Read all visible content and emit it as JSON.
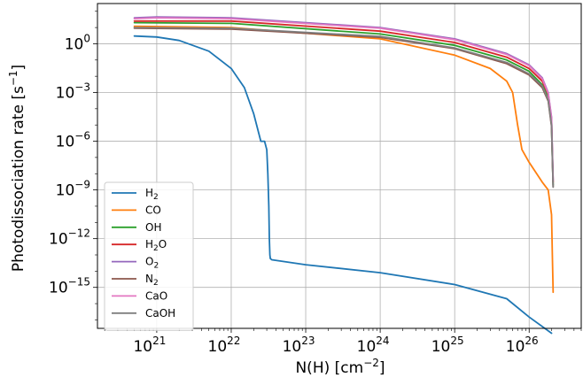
{
  "chart_data": {
    "type": "line",
    "xlabel": "N(H) [cm^-2]",
    "ylabel": "Photodissociation rate [s^-1]",
    "x_scale": "log",
    "y_scale": "log",
    "xlim": [
      1.6e+20,
      5e+26
    ],
    "ylim": [
      3e-18,
      300.0
    ],
    "x_ticks": [
      1e+21,
      1e+22,
      1e+23,
      1e+24,
      1e+25,
      1e+26
    ],
    "y_ticks": [
      1,
      0.001,
      1e-06,
      1e-09,
      1e-12,
      1e-15
    ],
    "x_tick_labels": [
      {
        "base": "10",
        "exp": "21"
      },
      {
        "base": "10",
        "exp": "22"
      },
      {
        "base": "10",
        "exp": "23"
      },
      {
        "base": "10",
        "exp": "24"
      },
      {
        "base": "10",
        "exp": "25"
      },
      {
        "base": "10",
        "exp": "26"
      }
    ],
    "y_tick_labels": [
      {
        "base": "10",
        "exp": "0"
      },
      {
        "base": "10",
        "exp": "−3"
      },
      {
        "base": "10",
        "exp": "−6"
      },
      {
        "base": "10",
        "exp": "−9"
      },
      {
        "base": "10",
        "exp": "−12"
      },
      {
        "base": "10",
        "exp": "−15"
      }
    ],
    "grid": true,
    "legend_position": "lower-left",
    "series": [
      {
        "name": "H2",
        "label": {
          "main": "H",
          "sub": "2",
          "tail": ""
        },
        "color": "#1f77b4",
        "x": [
          5e+20,
          1e+21,
          2e+21,
          5e+21,
          1e+22,
          1.5e+22,
          2e+22,
          2.5e+22,
          2.8e+22,
          3e+22,
          3.1e+22,
          3.2e+22,
          3.25e+22,
          3.3e+22,
          3.35e+22,
          3.5e+22,
          1e+23,
          1e+24,
          1e+25,
          5e+25,
          1e+26,
          2e+26
        ],
        "y": [
          3,
          2.6,
          1.6,
          0.35,
          0.03,
          0.002,
          5e-05,
          1e-06,
          1e-06,
          3e-07,
          1e-08,
          1e-10,
          1e-12,
          1e-13,
          6e-14,
          5e-14,
          2.5e-14,
          8e-15,
          1.5e-15,
          2e-16,
          1.5e-17,
          1.5e-18
        ]
      },
      {
        "name": "CO",
        "label": {
          "main": "CO",
          "sub": "",
          "tail": ""
        },
        "color": "#ff7f0e",
        "x": [
          5e+20,
          1e+22,
          1e+24,
          1e+25,
          3e+25,
          5e+25,
          6e+25,
          7e+25,
          8e+25,
          1e+26,
          1.5e+26,
          1.8e+26,
          2e+26,
          2.05e+26,
          2.1e+26
        ],
        "y": [
          12,
          10,
          2,
          0.2,
          0.03,
          0.005,
          0.001,
          1e-05,
          3e-07,
          5e-08,
          3e-09,
          1e-09,
          3e-11,
          1e-13,
          5e-16
        ]
      },
      {
        "name": "OH",
        "label": {
          "main": "OH",
          "sub": "",
          "tail": ""
        },
        "color": "#2ca02c",
        "x": [
          5e+20,
          1e+22,
          1e+24,
          1e+25,
          5e+25,
          1e+26,
          1.5e+26,
          1.8e+26,
          2e+26,
          2.05e+26,
          2.1e+26
        ],
        "y": [
          20,
          18,
          4,
          0.8,
          0.1,
          0.02,
          0.003,
          0.0005,
          1e-05,
          1e-07,
          2e-09
        ]
      },
      {
        "name": "H2O",
        "label": {
          "main": "H",
          "sub": "2",
          "tail": "O"
        },
        "color": "#d62728",
        "x": [
          5e+20,
          1e+22,
          1e+24,
          1e+25,
          5e+25,
          1e+26,
          1.5e+26,
          1.8e+26,
          2e+26,
          2.05e+26,
          2.1e+26
        ],
        "y": [
          25,
          25,
          6,
          1.2,
          0.15,
          0.03,
          0.005,
          0.0008,
          2e-05,
          2e-07,
          3e-09
        ]
      },
      {
        "name": "O2",
        "label": {
          "main": "O",
          "sub": "2",
          "tail": ""
        },
        "color": "#9467bd",
        "x": [
          5e+20,
          1e+21,
          1e+22,
          1e+24,
          1e+25,
          5e+25,
          1e+26,
          1.5e+26,
          1.8e+26,
          2e+26,
          2.05e+26,
          2.1e+26
        ],
        "y": [
          40,
          45,
          40,
          10,
          2,
          0.25,
          0.05,
          0.008,
          0.001,
          3e-05,
          3e-07,
          4e-09
        ]
      },
      {
        "name": "N2",
        "label": {
          "main": "N",
          "sub": "2",
          "tail": ""
        },
        "color": "#8c564b",
        "x": [
          5e+20,
          1e+22,
          1e+24,
          1e+25,
          5e+25,
          1e+26,
          1.5e+26,
          1.8e+26,
          2e+26,
          2.05e+26,
          2.1e+26
        ],
        "y": [
          9,
          8,
          2.5,
          0.5,
          0.06,
          0.012,
          0.002,
          0.0003,
          8e-06,
          1e-07,
          1.5e-09
        ]
      },
      {
        "name": "CaO",
        "label": {
          "main": "CaO",
          "sub": "",
          "tail": ""
        },
        "color": "#e377c2",
        "x": [
          5e+20,
          1e+21,
          1e+22,
          1e+24,
          1e+25,
          5e+25,
          1e+26,
          1.5e+26,
          1.8e+26,
          2e+26,
          2.05e+26,
          2.1e+26
        ],
        "y": [
          35,
          40,
          35,
          9,
          1.8,
          0.22,
          0.045,
          0.007,
          0.0009,
          2.5e-05,
          2.5e-07,
          3.5e-09
        ]
      },
      {
        "name": "CaOH",
        "label": {
          "main": "CaOH",
          "sub": "",
          "tail": ""
        },
        "color": "#7f7f7f",
        "x": [
          5e+20,
          1e+22,
          1e+24,
          1e+25,
          5e+25,
          1e+26,
          1.5e+26,
          1.8e+26,
          2e+26,
          2.05e+26,
          2.1e+26
        ],
        "y": [
          10,
          9,
          2.8,
          0.55,
          0.07,
          0.014,
          0.0025,
          0.00035,
          1e-05,
          1.2e-07,
          1.5e-09
        ]
      }
    ]
  }
}
